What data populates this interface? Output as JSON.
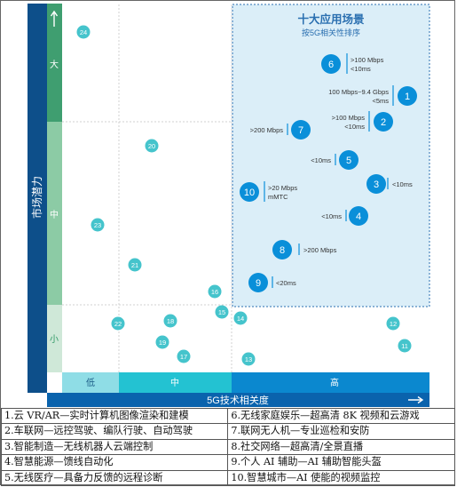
{
  "colors": {
    "navy": "#0d4f8a",
    "sidebar_blue": "#0a63ad",
    "green_dark": "#3f9e70",
    "green_mid": "#8ccba5",
    "green_light": "#cfe8d8",
    "green_text": "#2f9a66",
    "teal_light": "#8fdde6",
    "teal_mid": "#23c2d2",
    "blue_high": "#0b88cf",
    "bubble_blue": "#0a8fd9",
    "bubble_teal": "#45c4cc",
    "highlight_fill": "#dbeef8",
    "highlight_border": "#2a6fb0"
  },
  "y_axis": {
    "title": "市场潜力",
    "bands": [
      "大",
      "中",
      "小"
    ]
  },
  "x_axis": {
    "title": "5G技术相关度",
    "bands": [
      "低",
      "中",
      "高"
    ]
  },
  "highlight_box": {
    "title": "十大应用场景",
    "subtitle": "按5G相关性排序"
  },
  "bubbles": [
    {
      "id": "24",
      "group": "other",
      "col": 0.42,
      "row": 0.1
    },
    {
      "id": "20",
      "group": "other",
      "col": 0.82,
      "row": 0.57
    },
    {
      "id": "23",
      "group": "other",
      "col": 0.45,
      "row": 0.17
    },
    {
      "id": "21",
      "group": "other",
      "col": 0.8,
      "row": 0.32
    },
    {
      "id": "16",
      "group": "other",
      "col": 0.83,
      "row": 0.84
    },
    {
      "id": "22",
      "group": "other",
      "col": 0.6,
      "row": 0.33
    },
    {
      "id": "18",
      "group": "other",
      "col": 0.26,
      "row": 0.34
    },
    {
      "id": "19",
      "group": "other",
      "col": 0.22,
      "row": 0.58
    },
    {
      "id": "17",
      "group": "other",
      "col": 0.33,
      "row": 0.83
    },
    {
      "id": "15",
      "group": "other",
      "col": 0.97,
      "row": 0.1
    },
    {
      "id": "14",
      "group": "other",
      "col": 0.05,
      "row": 0.2
    },
    {
      "id": "13",
      "group": "other",
      "col": 0.08,
      "row": 0.83
    },
    {
      "id": "12",
      "group": "other",
      "col": 0.82,
      "row": 0.33
    },
    {
      "id": "11",
      "group": "other",
      "col": 0.86,
      "row": 0.62
    },
    {
      "id": "1",
      "group": "top10",
      "note": "100 Mbps~9.4 Gbps\n<5ms"
    },
    {
      "id": "2",
      "group": "top10",
      "note": ">100 Mbps\n<10ms"
    },
    {
      "id": "3",
      "group": "top10",
      "note": "<10ms"
    },
    {
      "id": "4",
      "group": "top10",
      "note": "<10ms"
    },
    {
      "id": "5",
      "group": "top10",
      "note": "<10ms"
    },
    {
      "id": "6",
      "group": "top10",
      "note": ">100 Mbps\n<10ms"
    },
    {
      "id": "7",
      "group": "top10",
      "note": ">200 Mbps"
    },
    {
      "id": "8",
      "group": "top10",
      "note": ">200 Mbps"
    },
    {
      "id": "9",
      "group": "top10",
      "note": "<20ms"
    },
    {
      "id": "10",
      "group": "top10",
      "note": ">20 Mbps\nmMTC"
    }
  ],
  "legend_rows": [
    [
      "1.云 VR/AR—实时计算机图像渲染和建模",
      "6.无线家庭娱乐—超高清 8K 视频和云游戏"
    ],
    [
      "2.车联网—远控驾驶、编队行驶、自动驾驶",
      "7.联网无人机—专业巡检和安防"
    ],
    [
      "3.智能制造—无线机器人云端控制",
      "8.社交网络—超高清/全景直播"
    ],
    [
      "4.智慧能源—馈线自动化",
      "9.个人 AI 辅助—AI 辅助智能头盔"
    ],
    [
      "5.无线医疗—具备力反馈的远程诊断",
      "10.智慧城市—AI 使能的视频监控"
    ]
  ]
}
